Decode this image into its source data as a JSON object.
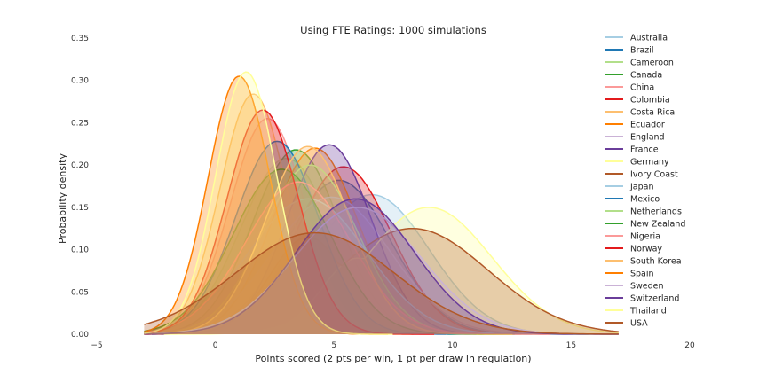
{
  "chart_data": {
    "type": "area",
    "title": "Using FTE Ratings: 1000 simulations",
    "xlabel": "Points scored (2 pts per win, 1 pt per draw in regulation)",
    "ylabel": "Probability density",
    "xlim": [
      -5,
      20
    ],
    "ylim": [
      0,
      0.35
    ],
    "xticks": [
      "−5",
      "0",
      "5",
      "10",
      "15",
      "20"
    ],
    "yticks": [
      "0.00",
      "0.05",
      "0.10",
      "0.15",
      "0.20",
      "0.25",
      "0.30",
      "0.35"
    ],
    "grid": false,
    "legend_position": "right",
    "series": [
      {
        "name": "Australia",
        "color": "#a6cee3",
        "peak_x": 6.6,
        "peak_y": 0.165
      },
      {
        "name": "Brazil",
        "color": "#1f78b4",
        "peak_x": 5.2,
        "peak_y": 0.182
      },
      {
        "name": "Cameroon",
        "color": "#b2df8a",
        "peak_x": 3.0,
        "peak_y": 0.208
      },
      {
        "name": "Canada",
        "color": "#33a02c",
        "peak_x": 3.4,
        "peak_y": 0.218
      },
      {
        "name": "China",
        "color": "#fb9a99",
        "peak_x": 2.2,
        "peak_y": 0.255
      },
      {
        "name": "Colombia",
        "color": "#e31a1c",
        "peak_x": 5.4,
        "peak_y": 0.198
      },
      {
        "name": "Costa Rica",
        "color": "#fdbf6f",
        "peak_x": 1.6,
        "peak_y": 0.284
      },
      {
        "name": "Ecuador",
        "color": "#ff7f00",
        "peak_x": 4.2,
        "peak_y": 0.22
      },
      {
        "name": "England",
        "color": "#cab2d6",
        "peak_x": 4.9,
        "peak_y": 0.162
      },
      {
        "name": "France",
        "color": "#6a3d9a",
        "peak_x": 4.8,
        "peak_y": 0.224
      },
      {
        "name": "Germany",
        "color": "#ffff99",
        "peak_x": 9.0,
        "peak_y": 0.15
      },
      {
        "name": "Ivory Coast",
        "color": "#b15928",
        "peak_x": 8.3,
        "peak_y": 0.125
      },
      {
        "name": "Japan",
        "color": "#a6cee3",
        "peak_x": 3.9,
        "peak_y": 0.16
      },
      {
        "name": "Mexico",
        "color": "#1f78b4",
        "peak_x": 2.6,
        "peak_y": 0.228
      },
      {
        "name": "Netherlands",
        "color": "#b2df8a",
        "peak_x": 4.0,
        "peak_y": 0.2
      },
      {
        "name": "New Zealand",
        "color": "#33a02c",
        "peak_x": 2.8,
        "peak_y": 0.195
      },
      {
        "name": "Nigeria",
        "color": "#fb9a99",
        "peak_x": 3.5,
        "peak_y": 0.18
      },
      {
        "name": "Norway",
        "color": "#e31a1c",
        "peak_x": 2.0,
        "peak_y": 0.265
      },
      {
        "name": "South Korea",
        "color": "#fdbf6f",
        "peak_x": 3.9,
        "peak_y": 0.222
      },
      {
        "name": "Spain",
        "color": "#ff7f00",
        "peak_x": 1.0,
        "peak_y": 0.305
      },
      {
        "name": "Sweden",
        "color": "#cab2d6",
        "peak_x": 6.0,
        "peak_y": 0.15
      },
      {
        "name": "Switzerland",
        "color": "#6a3d9a",
        "peak_x": 5.9,
        "peak_y": 0.16
      },
      {
        "name": "Thailand",
        "color": "#ffff99",
        "peak_x": 1.3,
        "peak_y": 0.31
      },
      {
        "name": "USA",
        "color": "#b15928",
        "peak_x": 4.2,
        "peak_y": 0.12
      }
    ]
  }
}
